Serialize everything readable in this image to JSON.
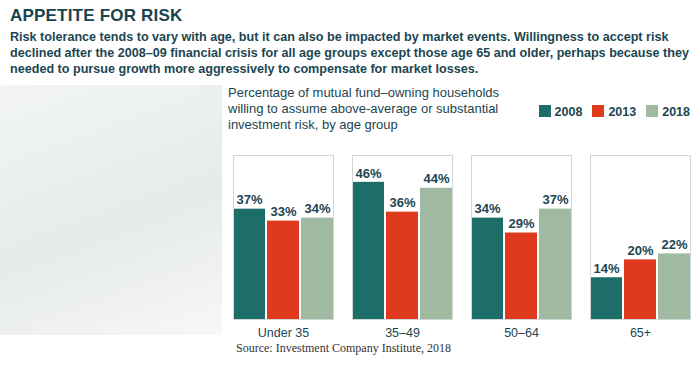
{
  "chart_data": {
    "type": "bar",
    "title": "APPETITE FOR RISK",
    "subtitle": "Risk tolerance tends to vary with age, but it can also be impacted by market events. Willingness to accept risk declined after the 2008–09 financial crisis for all age groups except those age 65 and older, perhaps because they needed to pursue growth more aggressively to compensate for market losses.",
    "ylabel": "Percentage of mutual fund–owning households willing to assume above-average or substantial investment risk, by age group",
    "source": "Source: Investment Company Institute, 2018",
    "categories": [
      "Under 35",
      "35–49",
      "50–64",
      "65+"
    ],
    "series": [
      {
        "name": "2008",
        "color": "#1d6e69",
        "values": [
          37,
          46,
          34,
          14
        ],
        "value_labels": [
          "37%",
          "46%",
          "34%",
          "14%"
        ]
      },
      {
        "name": "2013",
        "color": "#e03a1e",
        "values": [
          33,
          36,
          29,
          20
        ],
        "value_labels": [
          "33%",
          "36%",
          "29%",
          "20%"
        ]
      },
      {
        "name": "2018",
        "color": "#9fba a1",
        "values": [
          34,
          44,
          37,
          22
        ],
        "value_labels": [
          "34%",
          "44%",
          "37%",
          "22%"
        ]
      }
    ],
    "ylim": [
      0,
      55
    ],
    "yticks": [],
    "grid": false,
    "legend": "top",
    "data_labels": true,
    "tick_labels": "x"
  }
}
